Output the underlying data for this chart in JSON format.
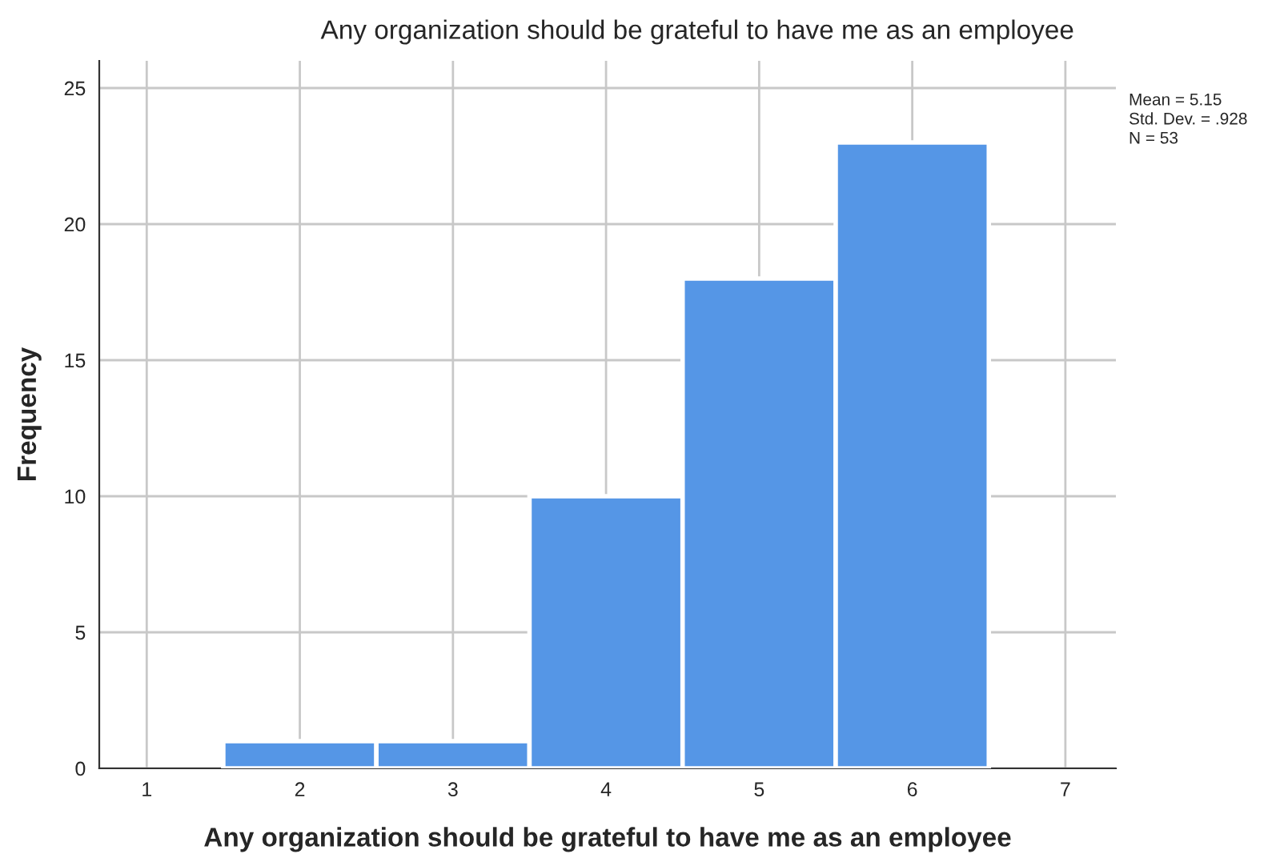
{
  "chart_data": {
    "type": "histogram",
    "title": "Any organization should be grateful to have me as an employee",
    "xlabel": "Any organization should be grateful to have me as an employee",
    "ylabel": "Frequency",
    "bins": [
      1.5,
      2.5,
      3.5,
      4.5,
      5.5,
      6.5
    ],
    "values": [
      1,
      1,
      10,
      18,
      23
    ],
    "color": "#5596e6",
    "xlim": [
      0.69,
      7.33
    ],
    "xticks": [
      1,
      2,
      3,
      4,
      5,
      6,
      7
    ],
    "ylim": [
      0,
      26
    ],
    "yticks": [
      0,
      5,
      10,
      15,
      20,
      25
    ],
    "grid": true,
    "annotations": [
      "Mean = 5.15",
      "Std. Dev. = .928",
      "N = 53"
    ]
  }
}
